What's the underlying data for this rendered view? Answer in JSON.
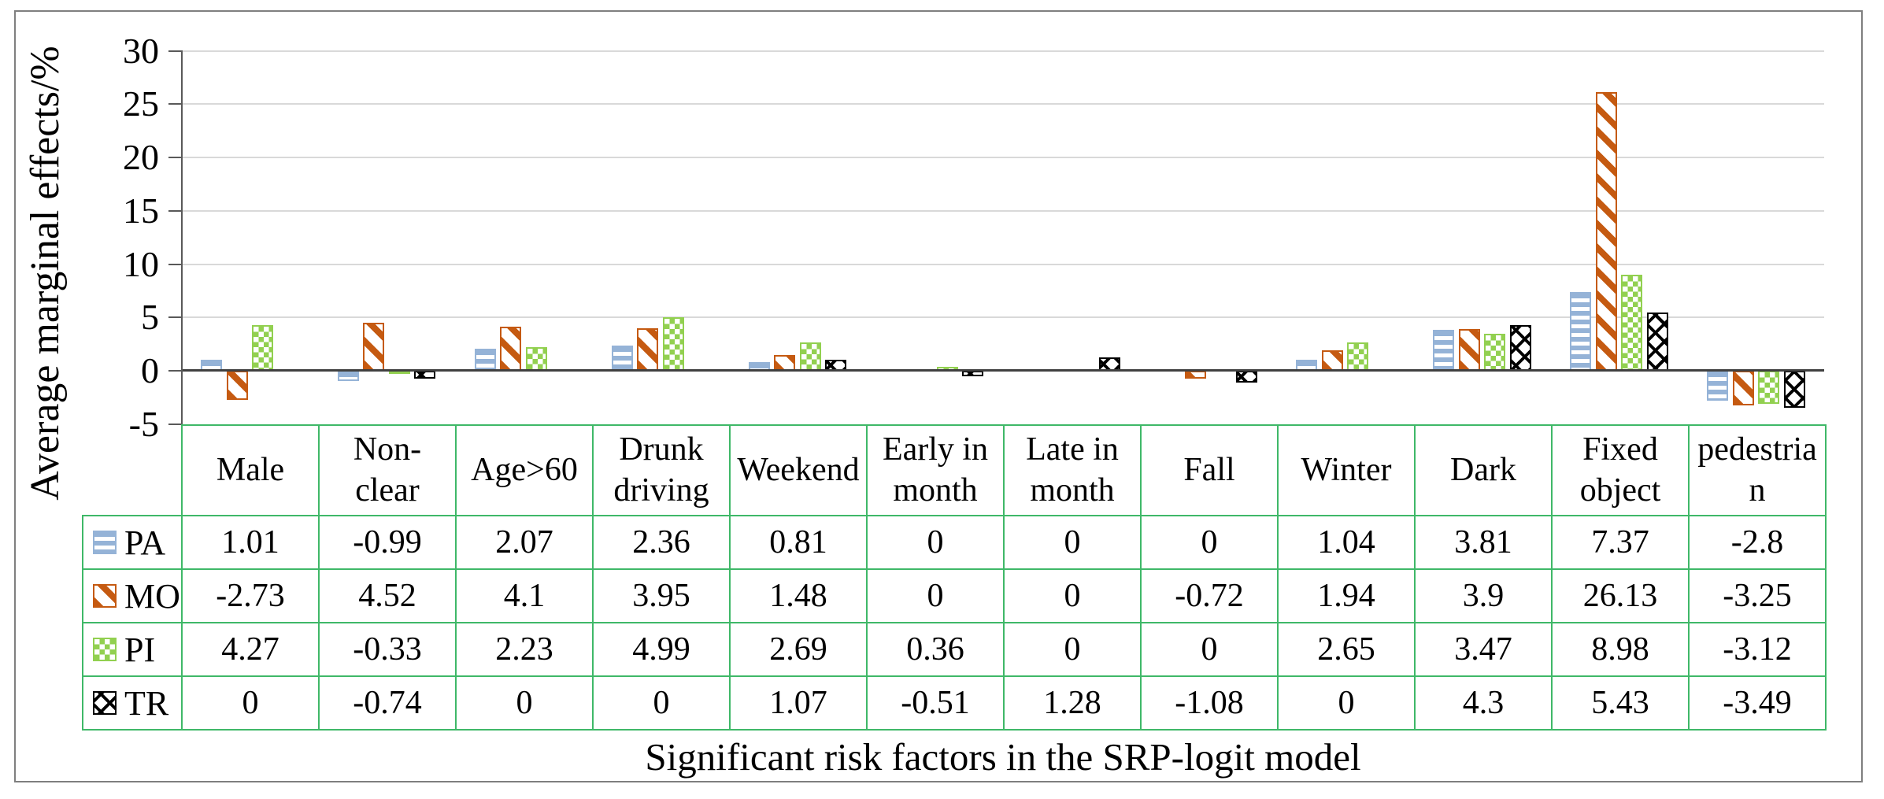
{
  "figure": {
    "y_axis_title": "Average marginal effects/%",
    "x_axis_title": "Significant risk factors in the SRP-logit model",
    "y_tick_labels": [
      "30",
      "25",
      "20",
      "15",
      "10",
      "5",
      "0",
      "-5"
    ]
  },
  "chart_data": {
    "type": "bar",
    "title": "",
    "xlabel": "Significant risk factors in the SRP-logit model",
    "ylabel": "Average marginal effects/%",
    "ylim": [
      -5,
      30
    ],
    "ytick_interval": 5,
    "grid": true,
    "legend_position": "table-left-keys",
    "categories": [
      "Male",
      "Non-clear",
      "Age>60",
      "Drunk driving",
      "Weekend",
      "Early in month",
      "Late in month",
      "Fall",
      "Winter",
      "Dark",
      "Fixed object",
      "pedestrian"
    ],
    "category_display": [
      "Male",
      "Non-\nclear",
      "Age>60",
      "Drunk\ndriving",
      "Weekend",
      "Early in\nmonth",
      "Late in\nmonth",
      "Fall",
      "Winter",
      "Dark",
      "Fixed\nobject",
      "pedestria\nn"
    ],
    "series": [
      {
        "name": "PA",
        "pattern": "horizontal-stripes",
        "color": "#95b3d7",
        "values": [
          1.01,
          -0.99,
          2.07,
          2.36,
          0.81,
          0,
          0,
          0,
          1.04,
          3.81,
          7.37,
          -2.8
        ],
        "display": [
          "1.01",
          "-0.99",
          "2.07",
          "2.36",
          "0.81",
          "0",
          "0",
          "0",
          "1.04",
          "3.81",
          "7.37",
          "-2.8"
        ]
      },
      {
        "name": "MO",
        "pattern": "diagonal-stripes",
        "color": "#c55a11",
        "values": [
          -2.73,
          4.52,
          4.1,
          3.95,
          1.48,
          0,
          0,
          -0.72,
          1.94,
          3.9,
          26.13,
          -3.25
        ],
        "display": [
          "-2.73",
          "4.52",
          "4.1",
          "3.95",
          "1.48",
          "0",
          "0",
          "-0.72",
          "1.94",
          "3.9",
          "26.13",
          "-3.25"
        ]
      },
      {
        "name": "PI",
        "pattern": "checkerboard",
        "color": "#92d050",
        "values": [
          4.27,
          -0.33,
          2.23,
          4.99,
          2.69,
          0.36,
          0,
          0,
          2.65,
          3.47,
          8.98,
          -3.12
        ],
        "display": [
          "4.27",
          "-0.33",
          "2.23",
          "4.99",
          "2.69",
          "0.36",
          "0",
          "0",
          "2.65",
          "3.47",
          "8.98",
          "-3.12"
        ]
      },
      {
        "name": "TR",
        "pattern": "diagonal-dash-lattice",
        "color": "#000000",
        "values": [
          0,
          -0.74,
          0,
          0,
          1.07,
          -0.51,
          1.28,
          -1.08,
          0,
          4.3,
          5.43,
          -3.49
        ],
        "display": [
          "0",
          "-0.74",
          "0",
          "0",
          "1.07",
          "-0.51",
          "1.28",
          "-1.08",
          "0",
          "4.3",
          "5.43",
          "-3.49"
        ]
      }
    ],
    "style_colors": {
      "gridline": "#d9d9d9",
      "zero_line": "#404040",
      "axis_line": "#595959",
      "table_border": "#3fb868",
      "figure_border": "#7f7f7f"
    }
  }
}
